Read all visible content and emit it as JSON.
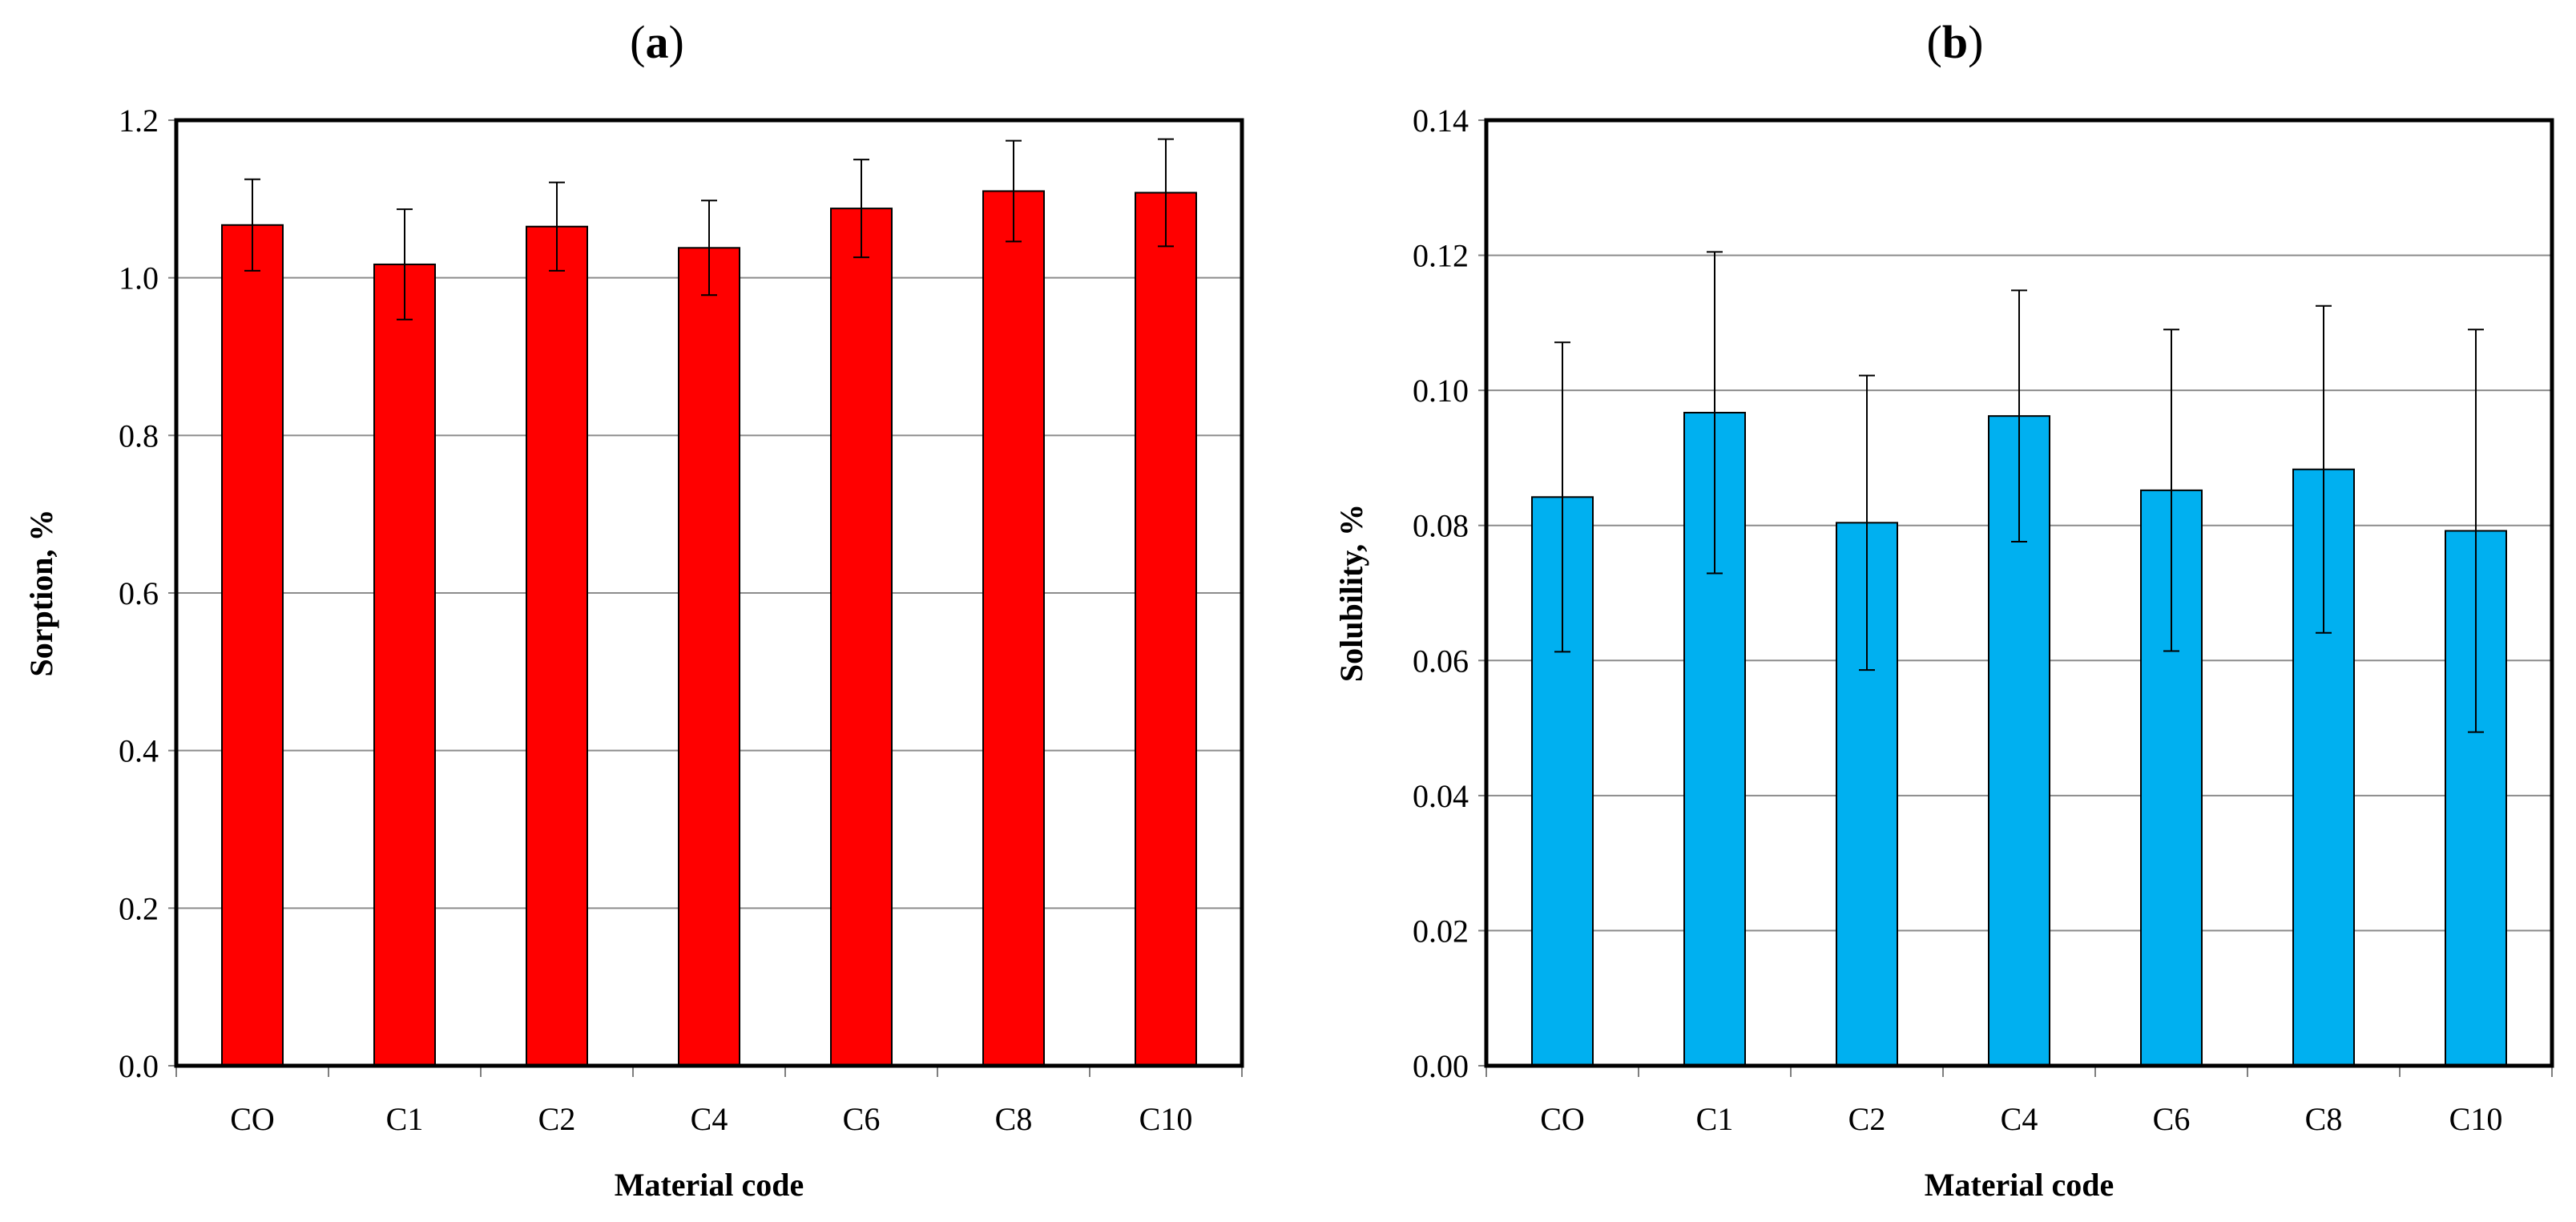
{
  "chart_data": [
    {
      "type": "bar",
      "panel_label": "a",
      "categories": [
        "CO",
        "C1",
        "C2",
        "C4",
        "C6",
        "C8",
        "C10"
      ],
      "values": [
        1.067,
        1.017,
        1.065,
        1.038,
        1.088,
        1.11,
        1.108
      ],
      "errors": [
        0.058,
        0.07,
        0.056,
        0.06,
        0.062,
        0.064,
        0.068
      ],
      "xlabel": "Material code",
      "ylabel": "Sorption, %",
      "ylim": [
        0,
        1.2
      ],
      "yticks": [
        "0.0",
        "0.2",
        "0.4",
        "0.6",
        "0.8",
        "1.0",
        "1.2"
      ],
      "grid": true,
      "color": "#ff0000"
    },
    {
      "type": "bar",
      "panel_label": "b",
      "categories": [
        "CO",
        "C1",
        "C2",
        "C4",
        "C6",
        "C8",
        "C10"
      ],
      "values": [
        0.0842,
        0.0967,
        0.0804,
        0.0962,
        0.0852,
        0.0883,
        0.0792
      ],
      "errors": [
        0.0229,
        0.0238,
        0.0218,
        0.0186,
        0.0238,
        0.0242,
        0.0298
      ],
      "xlabel": "Material code",
      "ylabel": "Solubility, %",
      "ylim": [
        0,
        0.14
      ],
      "yticks": [
        "0.00",
        "0.02",
        "0.04",
        "0.06",
        "0.08",
        "0.10",
        "0.12",
        "0.14"
      ],
      "grid": true,
      "color": "#00b0f0"
    }
  ]
}
